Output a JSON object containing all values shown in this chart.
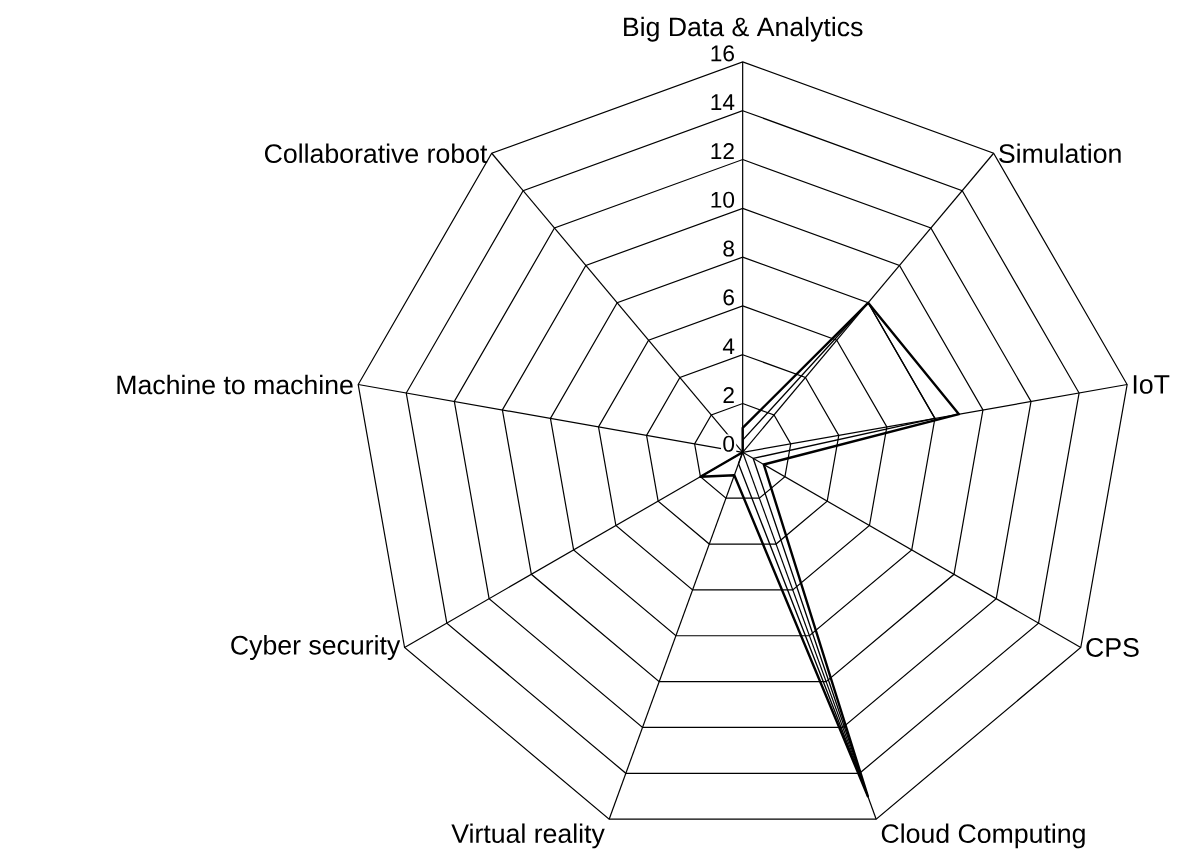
{
  "chart_data": {
    "type": "radar",
    "categories": [
      "Big Data & Analytics",
      "Simulation",
      "IoT",
      "CPS",
      "Cloud Computing",
      "Virtual reality",
      "Cyber security",
      "Machine to machine",
      "Collaborative robot"
    ],
    "ylim": [
      0,
      16
    ],
    "yticks": [
      0,
      2,
      4,
      6,
      8,
      10,
      12,
      14,
      16
    ],
    "grid": true,
    "marker": "none",
    "series": [
      {
        "color": "#000000",
        "values": [
          1,
          8,
          9,
          1,
          15,
          1,
          2,
          0,
          0
        ]
      },
      {
        "color": "#000000",
        "values": [
          0.5,
          8,
          8,
          0.5,
          15,
          0.5,
          0,
          0,
          0
        ]
      }
    ]
  }
}
